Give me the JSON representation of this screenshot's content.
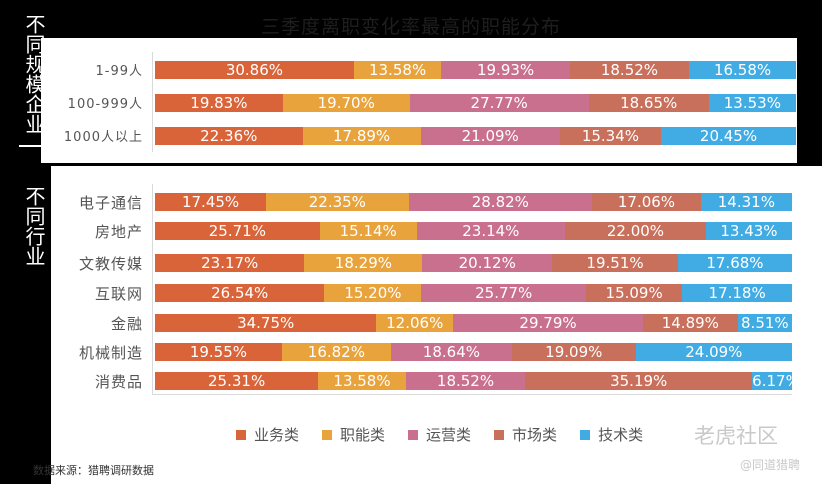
{
  "title": "三季度离职变化率最高的职能分布",
  "groups": {
    "company_size": "不同规模企业",
    "industry": "不同行业"
  },
  "colors": [
    "#d9643a",
    "#e8a33d",
    "#c9708f",
    "#c8705c",
    "#41ace3"
  ],
  "chart_data": {
    "type": "bar",
    "stacked": true,
    "orientation": "horizontal",
    "normalized_percent": true,
    "series": [
      {
        "name": "业务类"
      },
      {
        "name": "职能类"
      },
      {
        "name": "运营类"
      },
      {
        "name": "市场类"
      },
      {
        "name": "技术类"
      }
    ],
    "panels": [
      {
        "group": "不同规模企业",
        "categories": [
          "1-99人",
          "100-999人",
          "1000人以上"
        ],
        "values": [
          [
            30.86,
            13.58,
            19.93,
            18.52,
            16.58
          ],
          [
            19.83,
            19.7,
            27.77,
            18.65,
            13.53
          ],
          [
            22.36,
            17.89,
            21.09,
            15.34,
            20.45
          ]
        ],
        "labels": [
          [
            "30.86%",
            "13.58%",
            "19.93%",
            "18.52%",
            "16.58%"
          ],
          [
            "19.83%",
            "19.70%",
            "27.77%",
            "18.65%",
            "13.53%"
          ],
          [
            "22.36%",
            "17.89%",
            "21.09%",
            "15.34%",
            "20.45%"
          ]
        ]
      },
      {
        "group": "不同行业",
        "categories": [
          "电子通信",
          "房地产",
          "文教传媒",
          "互联网",
          "金融",
          "机械制造",
          "消费品"
        ],
        "values": [
          [
            17.45,
            22.35,
            28.82,
            17.06,
            14.31
          ],
          [
            25.71,
            15.14,
            23.14,
            22.0,
            13.43
          ],
          [
            23.17,
            18.29,
            20.12,
            19.51,
            17.68
          ],
          [
            26.54,
            15.2,
            25.77,
            15.09,
            17.18
          ],
          [
            34.75,
            12.06,
            29.79,
            14.89,
            8.51
          ],
          [
            19.55,
            16.82,
            18.64,
            19.09,
            24.09
          ],
          [
            25.31,
            13.58,
            18.52,
            35.19,
            6.17
          ]
        ],
        "labels": [
          [
            "17.45%",
            "22.35%",
            "28.82%",
            "17.06%",
            "14.31%"
          ],
          [
            "25.71%",
            "15.14%",
            "23.14%",
            "22.00%",
            "13.43%"
          ],
          [
            "23.17%",
            "18.29%",
            "20.12%",
            "19.51%",
            "17.68%"
          ],
          [
            "26.54%",
            "15.20%",
            "25.77%",
            "15.09%",
            "17.18%"
          ],
          [
            "34.75%",
            "12.06%",
            "29.79%",
            "14.89%",
            "8.51%"
          ],
          [
            "19.55%",
            "16.82%",
            "18.64%",
            "19.09%",
            "24.09%"
          ],
          [
            "25.31%",
            "13.58%",
            "18.52%",
            "35.19%",
            "6.17%"
          ]
        ]
      }
    ],
    "legend_position": "bottom"
  },
  "source": "数据来源：猎聘调研数据",
  "watermark": "老虎社区",
  "watermark_sub": "@同道猎聘"
}
